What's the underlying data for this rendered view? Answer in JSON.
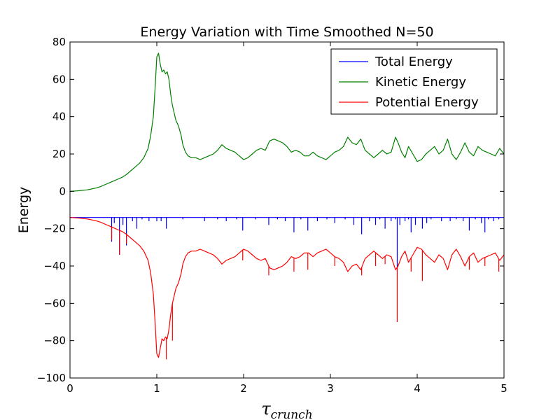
{
  "chart_data": {
    "type": "line",
    "title": "Energy Variation with Time Smoothed N=50",
    "xlabel_main": "τ",
    "xlabel_sub": "crunch",
    "ylabel": "Energy",
    "xlim": [
      0,
      5
    ],
    "ylim": [
      -100,
      80
    ],
    "xticks": [
      0,
      1,
      2,
      3,
      4,
      5
    ],
    "yticks": [
      -100,
      -80,
      -60,
      -40,
      -20,
      0,
      20,
      40,
      60,
      80
    ],
    "xtick_labels": [
      "0",
      "1",
      "2",
      "3",
      "4",
      "5"
    ],
    "ytick_labels": [
      "−100",
      "−80",
      "−60",
      "−40",
      "−20",
      "0",
      "20",
      "40",
      "60",
      "80"
    ],
    "grid": false,
    "legend": {
      "position": "top-right",
      "entries": [
        "Total Energy",
        "Kinetic Energy",
        "Potential Energy"
      ]
    },
    "series": [
      {
        "name": "Total Energy",
        "color": "#0000ff",
        "base": -14,
        "spikes": [
          [
            0.48,
            -27
          ],
          [
            0.51,
            -17
          ],
          [
            0.57,
            -34
          ],
          [
            0.61,
            -18
          ],
          [
            0.65,
            -29
          ],
          [
            0.72,
            -16
          ],
          [
            0.77,
            -20
          ],
          [
            0.83,
            -15
          ],
          [
            0.91,
            -16
          ],
          [
            1.0,
            -16
          ],
          [
            1.05,
            -16
          ],
          [
            1.11,
            -20
          ],
          [
            1.3,
            -15
          ],
          [
            1.55,
            -16
          ],
          [
            1.7,
            -15
          ],
          [
            1.8,
            -16
          ],
          [
            1.92,
            -15
          ],
          [
            1.99,
            -21
          ],
          [
            2.14,
            -15
          ],
          [
            2.29,
            -18
          ],
          [
            2.39,
            -15
          ],
          [
            2.48,
            -16
          ],
          [
            2.58,
            -22
          ],
          [
            2.66,
            -15
          ],
          [
            2.74,
            -21
          ],
          [
            2.85,
            -16
          ],
          [
            2.96,
            -15
          ],
          [
            3.05,
            -17
          ],
          [
            3.17,
            -15
          ],
          [
            3.27,
            -18
          ],
          [
            3.36,
            -23
          ],
          [
            3.45,
            -16
          ],
          [
            3.52,
            -18
          ],
          [
            3.57,
            -15
          ],
          [
            3.63,
            -20
          ],
          [
            3.7,
            -16
          ],
          [
            3.75,
            -15
          ],
          [
            3.77,
            -43
          ],
          [
            3.8,
            -18
          ],
          [
            3.86,
            -16
          ],
          [
            3.9,
            -15
          ],
          [
            3.93,
            -22
          ],
          [
            3.98,
            -18
          ],
          [
            4.06,
            -20
          ],
          [
            4.11,
            -17
          ],
          [
            4.16,
            -15
          ],
          [
            4.28,
            -16
          ],
          [
            4.38,
            -16
          ],
          [
            4.45,
            -15
          ],
          [
            4.53,
            -16
          ],
          [
            4.6,
            -21
          ],
          [
            4.67,
            -15
          ],
          [
            4.74,
            -17
          ],
          [
            4.78,
            -22
          ],
          [
            4.82,
            -15
          ],
          [
            4.88,
            -16
          ],
          [
            4.94,
            -15
          ]
        ]
      },
      {
        "name": "Kinetic Energy",
        "color": "#008000",
        "x": [
          0,
          0.1,
          0.2,
          0.3,
          0.35,
          0.4,
          0.45,
          0.5,
          0.55,
          0.6,
          0.65,
          0.7,
          0.75,
          0.8,
          0.85,
          0.9,
          0.93,
          0.96,
          0.98,
          1.0,
          1.02,
          1.04,
          1.06,
          1.08,
          1.1,
          1.12,
          1.14,
          1.16,
          1.18,
          1.2,
          1.22,
          1.25,
          1.28,
          1.3,
          1.33,
          1.36,
          1.4,
          1.45,
          1.5,
          1.55,
          1.6,
          1.65,
          1.7,
          1.75,
          1.8,
          1.85,
          1.9,
          1.95,
          2.0,
          2.05,
          2.1,
          2.15,
          2.2,
          2.25,
          2.3,
          2.35,
          2.4,
          2.45,
          2.5,
          2.55,
          2.6,
          2.65,
          2.7,
          2.75,
          2.8,
          2.85,
          2.9,
          2.95,
          3.0,
          3.05,
          3.1,
          3.15,
          3.2,
          3.25,
          3.3,
          3.35,
          3.4,
          3.45,
          3.5,
          3.55,
          3.6,
          3.65,
          3.7,
          3.75,
          3.78,
          3.82,
          3.86,
          3.9,
          3.95,
          4.0,
          4.05,
          4.1,
          4.15,
          4.2,
          4.25,
          4.3,
          4.35,
          4.4,
          4.45,
          4.5,
          4.55,
          4.6,
          4.65,
          4.7,
          4.75,
          4.8,
          4.85,
          4.9,
          4.95,
          5.0
        ],
        "values": [
          0,
          0.3,
          0.8,
          1.8,
          2.5,
          3.5,
          4.5,
          5.5,
          6.5,
          7.5,
          9,
          11,
          13,
          15,
          18,
          23,
          30,
          40,
          55,
          72,
          74,
          68,
          64,
          65,
          63,
          64,
          60,
          52,
          46,
          42,
          38,
          35,
          30,
          25,
          21,
          19,
          18,
          18,
          17,
          18,
          19,
          20,
          22,
          25,
          23,
          22,
          21,
          19,
          17,
          18,
          20,
          22,
          23,
          22,
          27,
          28,
          27,
          26,
          24,
          21,
          22,
          21,
          19,
          19,
          21,
          19,
          18,
          17,
          19,
          21,
          22,
          24,
          29,
          26,
          25,
          28,
          22,
          20,
          18,
          20,
          22,
          20,
          21,
          29,
          26,
          21,
          18,
          24,
          20,
          16,
          17,
          20,
          22,
          24,
          20,
          22,
          28,
          20,
          17,
          21,
          26,
          21,
          19,
          24,
          22,
          21,
          20,
          19,
          23,
          20
        ]
      },
      {
        "name": "Potential Energy",
        "color": "#ff0000",
        "x": [
          0,
          0.1,
          0.2,
          0.3,
          0.35,
          0.4,
          0.45,
          0.5,
          0.55,
          0.6,
          0.65,
          0.7,
          0.75,
          0.8,
          0.85,
          0.9,
          0.93,
          0.96,
          0.98,
          1.0,
          1.02,
          1.04,
          1.06,
          1.08,
          1.1,
          1.12,
          1.14,
          1.16,
          1.18,
          1.2,
          1.22,
          1.25,
          1.28,
          1.3,
          1.33,
          1.36,
          1.4,
          1.45,
          1.5,
          1.55,
          1.6,
          1.65,
          1.7,
          1.75,
          1.8,
          1.85,
          1.9,
          1.95,
          2.0,
          2.05,
          2.1,
          2.15,
          2.2,
          2.25,
          2.3,
          2.35,
          2.4,
          2.45,
          2.5,
          2.55,
          2.6,
          2.65,
          2.7,
          2.75,
          2.8,
          2.85,
          2.9,
          2.95,
          3.0,
          3.05,
          3.1,
          3.15,
          3.2,
          3.25,
          3.3,
          3.35,
          3.4,
          3.45,
          3.5,
          3.55,
          3.6,
          3.65,
          3.7,
          3.75,
          3.78,
          3.82,
          3.86,
          3.9,
          3.95,
          4.0,
          4.05,
          4.1,
          4.15,
          4.2,
          4.25,
          4.3,
          4.35,
          4.4,
          4.45,
          4.5,
          4.55,
          4.6,
          4.65,
          4.7,
          4.75,
          4.8,
          4.85,
          4.9,
          4.95,
          5.0
        ],
        "values": [
          -14,
          -14.3,
          -14.8,
          -15.8,
          -16.5,
          -17.5,
          -18.5,
          -19.5,
          -20.5,
          -21.5,
          -23,
          -25,
          -27,
          -29,
          -32,
          -37,
          -44,
          -55,
          -70,
          -87,
          -89,
          -84,
          -79,
          -80,
          -78,
          -79,
          -74,
          -66,
          -60,
          -56,
          -52,
          -49,
          -44,
          -39,
          -35,
          -33,
          -32,
          -32,
          -31,
          -32,
          -33,
          -34,
          -36,
          -39,
          -37,
          -36,
          -35,
          -33,
          -31,
          -32,
          -34,
          -36,
          -37,
          -36,
          -41,
          -42,
          -41,
          -40,
          -38,
          -35,
          -36,
          -35,
          -33,
          -33,
          -35,
          -33,
          -32,
          -31,
          -33,
          -35,
          -36,
          -38,
          -43,
          -40,
          -39,
          -42,
          -36,
          -34,
          -32,
          -34,
          -36,
          -34,
          -35,
          -42,
          -40,
          -35,
          -32,
          -38,
          -34,
          -30,
          -31,
          -34,
          -36,
          -38,
          -34,
          -36,
          -42,
          -34,
          -31,
          -35,
          -40,
          -35,
          -33,
          -38,
          -36,
          -35,
          -34,
          -33,
          -37,
          -34
        ],
        "spikes": [
          [
            0.48,
            -26
          ],
          [
            0.57,
            -34
          ],
          [
            0.65,
            -28
          ],
          [
            1.11,
            -90
          ],
          [
            1.18,
            -80
          ],
          [
            1.99,
            -37
          ],
          [
            2.29,
            -45
          ],
          [
            2.58,
            -43
          ],
          [
            2.74,
            -42
          ],
          [
            3.05,
            -40
          ],
          [
            3.36,
            -45
          ],
          [
            3.52,
            -40
          ],
          [
            3.63,
            -39
          ],
          [
            3.77,
            -70
          ],
          [
            3.93,
            -43
          ],
          [
            4.06,
            -48
          ],
          [
            4.6,
            -42
          ],
          [
            4.78,
            -40
          ],
          [
            4.94,
            -43
          ]
        ]
      }
    ]
  }
}
